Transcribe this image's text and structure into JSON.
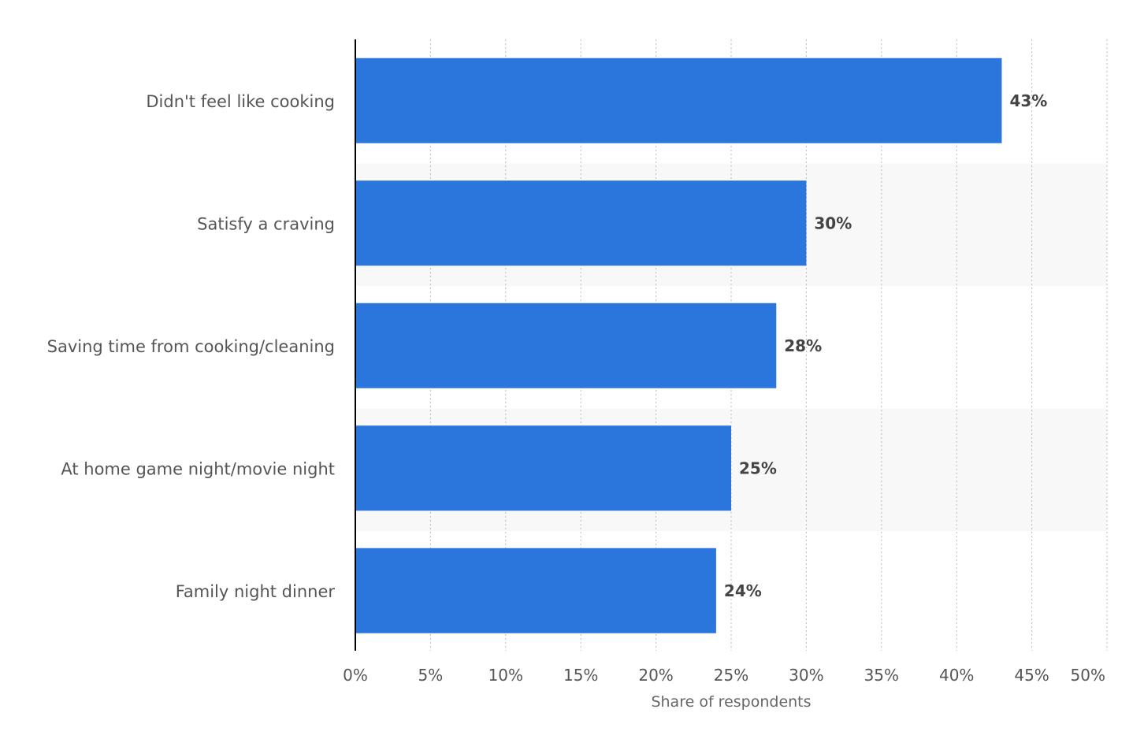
{
  "chart_data": {
    "type": "bar",
    "orientation": "horizontal",
    "categories": [
      "Didn't feel like cooking",
      "Satisfy a craving",
      "Saving time from cooking/cleaning",
      "At home game night/movie night",
      "Family night dinner"
    ],
    "values": [
      43,
      30,
      28,
      25,
      24
    ],
    "value_labels": [
      "43%",
      "30%",
      "28%",
      "25%",
      "24%"
    ],
    "xlabel": "Share of respondents",
    "ylabel": "",
    "xlim": [
      0,
      50
    ],
    "ticks": [
      0,
      5,
      10,
      15,
      20,
      25,
      30,
      35,
      40,
      45,
      50
    ],
    "tick_labels": [
      "0%",
      "5%",
      "10%",
      "15%",
      "20%",
      "25%",
      "30%",
      "35%",
      "40%",
      "45%",
      "50%"
    ],
    "grid": true,
    "bar_color": "#2a76dd",
    "band_color": "#f8f8f8"
  }
}
